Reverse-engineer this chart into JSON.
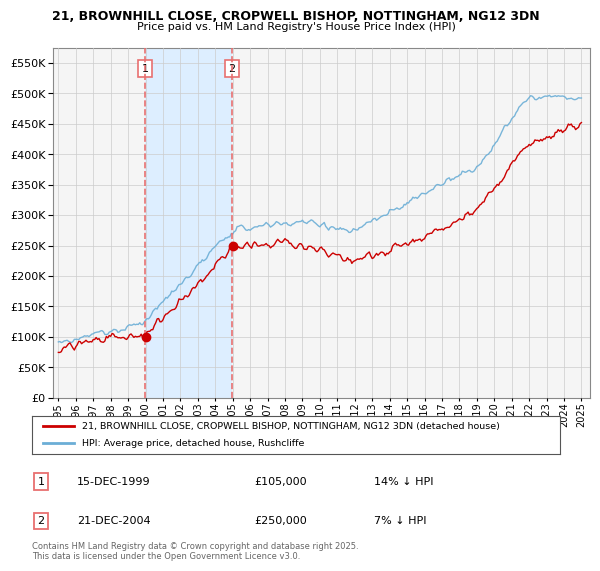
{
  "title_line1": "21, BROWNHILL CLOSE, CROPWELL BISHOP, NOTTINGHAM, NG12 3DN",
  "title_line2": "Price paid vs. HM Land Registry's House Price Index (HPI)",
  "legend_label1": "21, BROWNHILL CLOSE, CROPWELL BISHOP, NOTTINGHAM, NG12 3DN (detached house)",
  "legend_label2": "HPI: Average price, detached house, Rushcliffe",
  "transaction1_box": "1",
  "transaction1_date": "15-DEC-1999",
  "transaction1_price": "£105,000",
  "transaction1_note": "14% ↓ HPI",
  "transaction2_box": "2",
  "transaction2_date": "21-DEC-2004",
  "transaction2_price": "£250,000",
  "transaction2_note": "7% ↓ HPI",
  "footer": "Contains HM Land Registry data © Crown copyright and database right 2025.\nThis data is licensed under the Open Government Licence v3.0.",
  "color_property": "#cc0000",
  "color_hpi": "#6baed6",
  "color_vline": "#e87070",
  "color_shade": "#ddeeff",
  "color_bg": "#f5f5f5",
  "ylim_min": 0,
  "ylim_max": 575000,
  "x_start_year": 1995,
  "x_end_year": 2025,
  "transaction1_year": 1999.96,
  "transaction2_year": 2004.96
}
